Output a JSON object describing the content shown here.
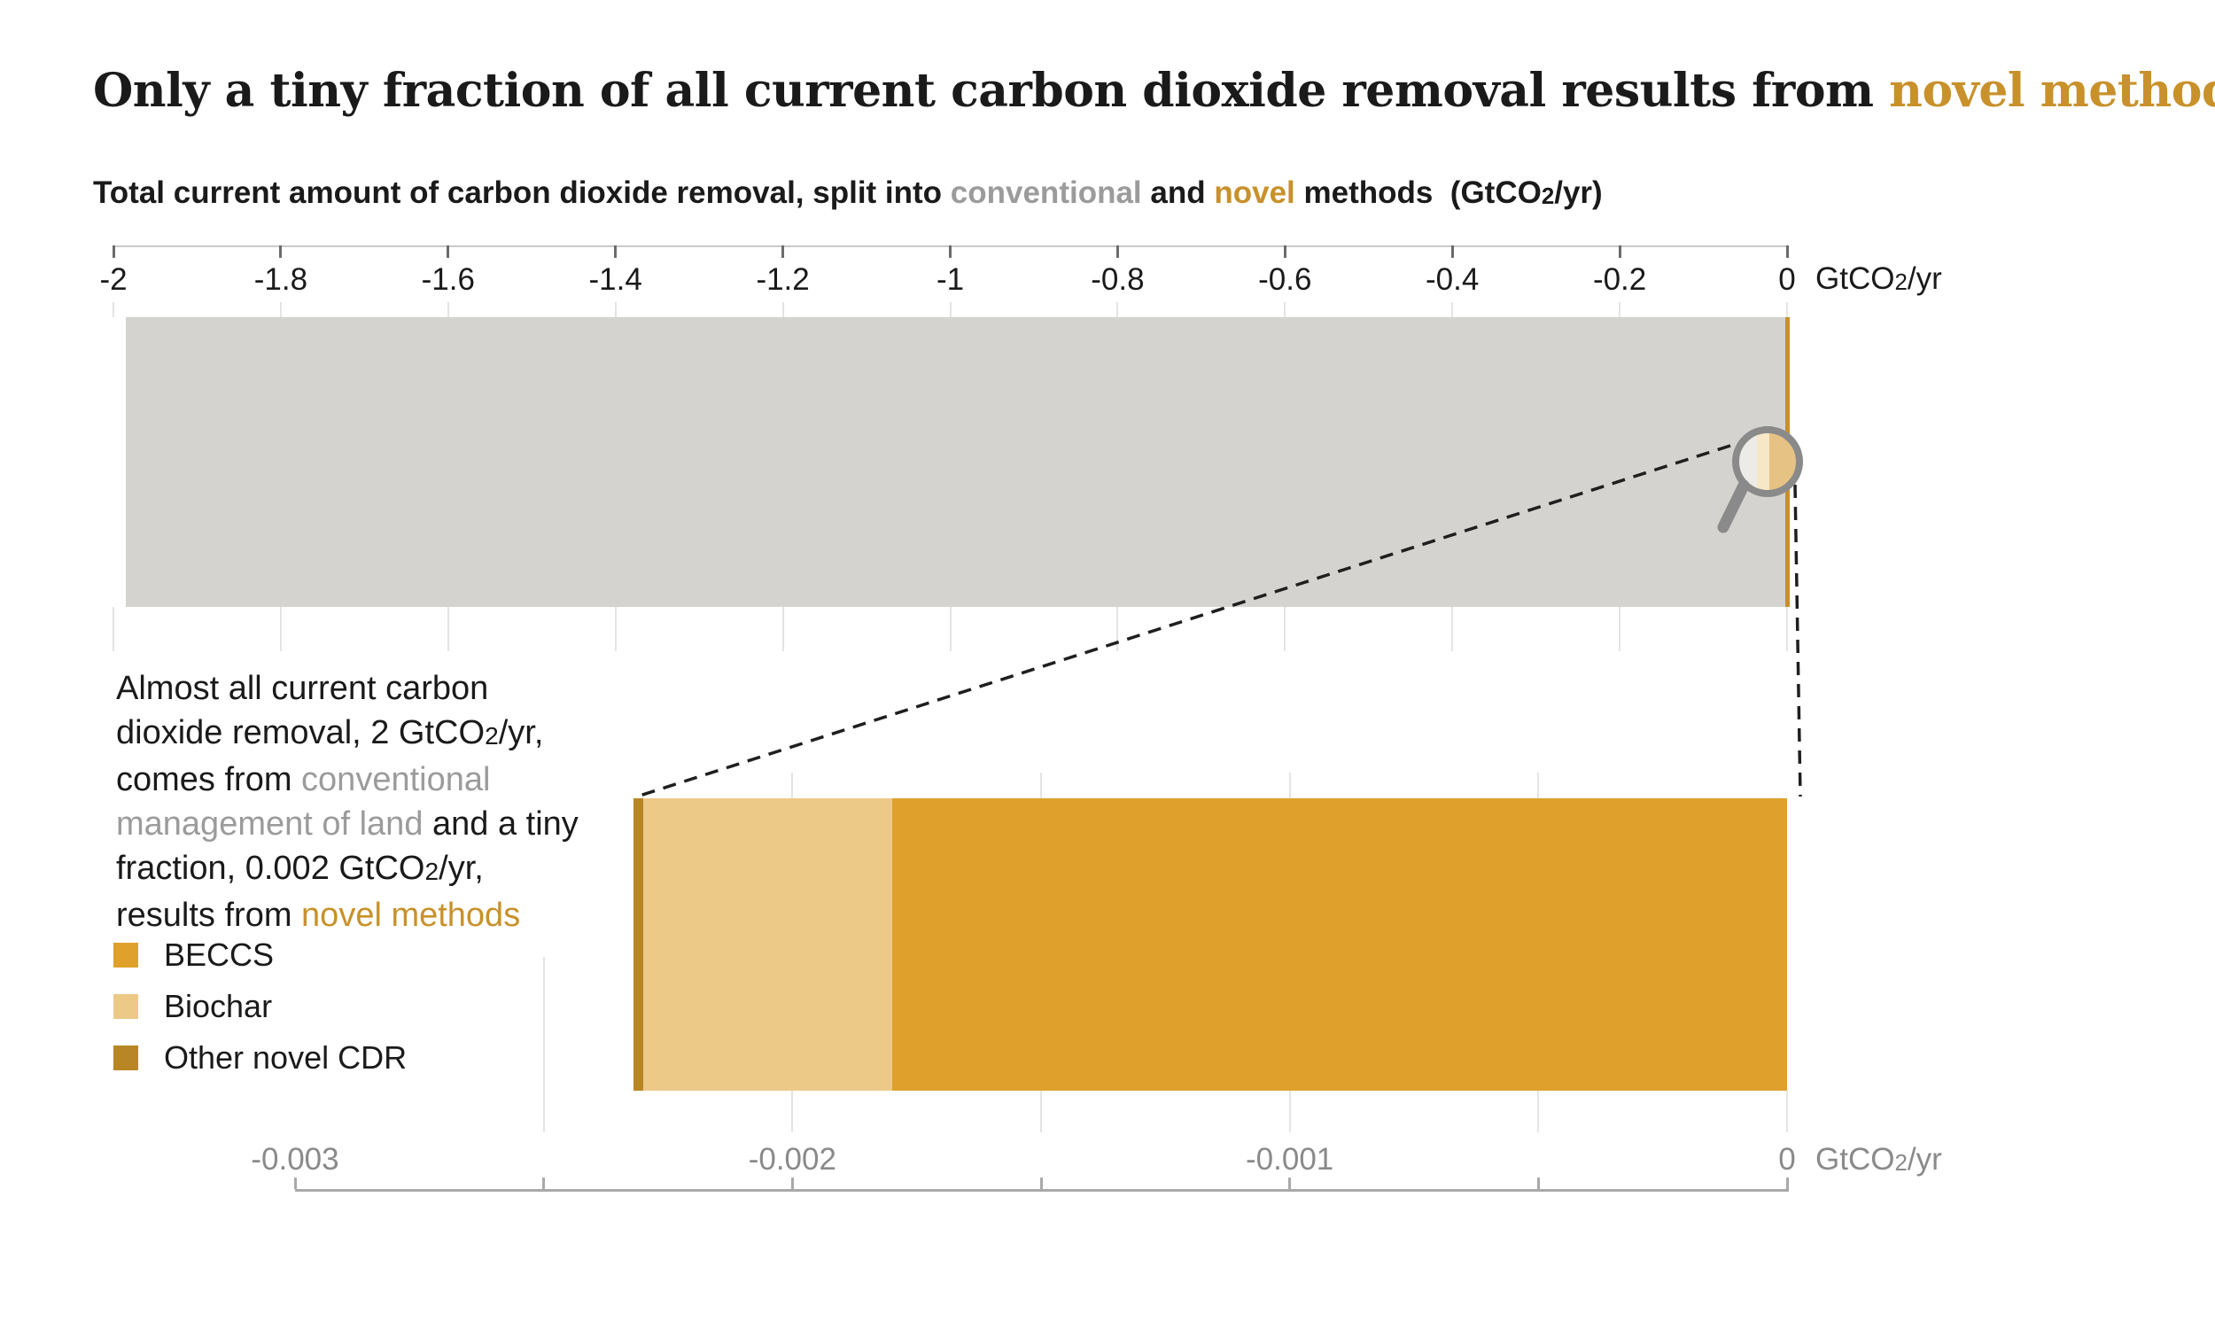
{
  "title": {
    "text_before": "Only a tiny fraction of all current carbon dioxide removal results from ",
    "highlight": "novel methods"
  },
  "subtitle": {
    "part1": "Total current amount of carbon dioxide removal, split into ",
    "conventional": "conventional",
    "part2": " and ",
    "novel": "novel",
    "part3": " methods  (GtCO",
    "sub": "2",
    "part4": "/yr)"
  },
  "axis_unit": {
    "prefix": "GtCO",
    "sub": "2",
    "suffix": "/yr"
  },
  "annotation": {
    "l1": "Almost all current carbon",
    "l2a": "dioxide removal, 2 GtCO",
    "l2sub": "2",
    "l2b": "/yr,",
    "l3a": "comes from ",
    "l3gray": "conventional",
    "l4gray": "management of land",
    "l4b": " and a tiny",
    "l5a": "fraction, 0.002 GtCO",
    "l5sub": "2",
    "l5b": "/yr,",
    "l6a": "results from ",
    "l6gold": "novel methods"
  },
  "legend": {
    "items": [
      {
        "label": "BECCS",
        "color": "#DFA12C"
      },
      {
        "label": "Biochar",
        "color": "#EDC988"
      },
      {
        "label": "Other novel CDR",
        "color": "#B98625"
      }
    ]
  },
  "colors": {
    "accent_gold": "#C8912B",
    "muted_gray_text": "#9B9B9B",
    "axis_text_gray": "#8A8A8A",
    "conventional_bar": "#D5D3D0",
    "novel_sliver": "#C8902C",
    "beccs": "#DFA12C",
    "biochar": "#EDC988",
    "other_novel_cdr": "#B98625",
    "magnifier_gray": "#8A8A8A",
    "lens_inner_left": "#EDEBE7",
    "lens_inner_mid": "#F6E8C7",
    "lens_inner_right": "#E6C284",
    "dashed_line": "#1F1F1F"
  },
  "chart_data": [
    {
      "type": "bar",
      "stacked": true,
      "orientation": "horizontal",
      "id": "total-cdr",
      "title": "Total current amount of carbon dioxide removal, split into conventional and novel methods (GtCO2/yr)",
      "unit": "GtCO2/yr",
      "xlim": [
        -2,
        0
      ],
      "xticks": [
        -2,
        -1.8,
        -1.6,
        -1.4,
        -1.2,
        -1,
        -0.8,
        -0.6,
        -0.4,
        -0.2,
        0
      ],
      "xtick_labels": [
        "-2",
        "-1.8",
        "-1.6",
        "-1.4",
        "-1.2",
        "-1",
        "-0.8",
        "-0.6",
        "-0.4",
        "-0.2",
        "0"
      ],
      "grid": true,
      "series": [
        {
          "name": "Conventional management of land",
          "value": -2,
          "color": "#D5D3D0"
        },
        {
          "name": "Novel methods",
          "value": -0.002,
          "color": "#C8902C"
        }
      ]
    },
    {
      "type": "bar",
      "stacked": true,
      "orientation": "horizontal",
      "id": "novel-cdr-zoom",
      "unit": "GtCO2/yr",
      "xlim": [
        -0.003,
        0
      ],
      "xticks": [
        -0.003,
        -0.0025,
        -0.002,
        -0.0015,
        -0.001,
        -0.0005,
        0
      ],
      "xtick_labels": [
        "-0.003",
        "",
        "-0.002",
        "",
        "-0.001",
        "",
        "0"
      ],
      "grid": true,
      "series": [
        {
          "name": "Other novel CDR",
          "value": -2e-05,
          "color": "#B98625"
        },
        {
          "name": "Biochar",
          "value": -0.0005,
          "color": "#EDC988"
        },
        {
          "name": "BECCS",
          "value": -0.0018,
          "color": "#DFA12C"
        }
      ]
    }
  ]
}
